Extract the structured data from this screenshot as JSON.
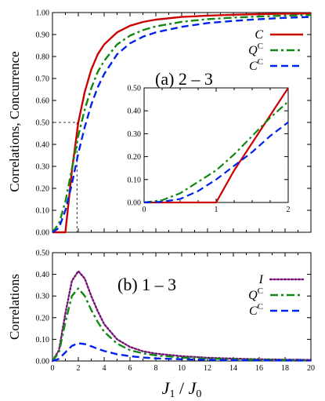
{
  "chart_data": [
    {
      "type": "line",
      "panel_label": "(a) 2 – 3",
      "ylabel": "Correlations, Concurrence",
      "xlim": [
        0,
        20
      ],
      "ylim": [
        0,
        1.0
      ],
      "yticks": [
        "0.00",
        "0.10",
        "0.20",
        "0.30",
        "0.40",
        "0.50",
        "0.60",
        "0.70",
        "0.80",
        "0.90",
        "1.00"
      ],
      "xticks": [],
      "reference": {
        "y": 0.5,
        "x": 1.9
      },
      "legend_placement": "upper-right",
      "series": [
        {
          "name": "C",
          "name_sup": "",
          "color": "#cc0000",
          "dash": "solid",
          "x": [
            0,
            1,
            1.5,
            2,
            2.5,
            3,
            3.5,
            4,
            5,
            6,
            7,
            8,
            10,
            12,
            14,
            16,
            18,
            20
          ],
          "y": [
            0,
            0,
            0.28,
            0.5,
            0.64,
            0.74,
            0.81,
            0.855,
            0.91,
            0.94,
            0.957,
            0.968,
            0.98,
            0.986,
            0.99,
            0.993,
            0.995,
            0.996
          ]
        },
        {
          "name": "Q",
          "name_sup": "C",
          "color": "#118811",
          "dash": "dashdot",
          "x": [
            0,
            0.5,
            1,
            1.5,
            2,
            2.5,
            3,
            3.5,
            4,
            5,
            6,
            7,
            8,
            10,
            12,
            14,
            16,
            18,
            20
          ],
          "y": [
            0,
            0.04,
            0.14,
            0.29,
            0.44,
            0.56,
            0.655,
            0.73,
            0.78,
            0.855,
            0.895,
            0.92,
            0.937,
            0.958,
            0.97,
            0.977,
            0.982,
            0.986,
            0.989
          ]
        },
        {
          "name": "C",
          "name_sup": "C",
          "color": "#0022ee",
          "dash": "dashed",
          "x": [
            0,
            0.5,
            1,
            1.5,
            2,
            2.5,
            3,
            3.5,
            4,
            5,
            6,
            7,
            8,
            10,
            12,
            14,
            16,
            18,
            20
          ],
          "y": [
            0,
            0.02,
            0.1,
            0.22,
            0.36,
            0.48,
            0.58,
            0.66,
            0.72,
            0.81,
            0.86,
            0.89,
            0.91,
            0.935,
            0.952,
            0.962,
            0.97,
            0.976,
            0.98
          ]
        }
      ],
      "inset": {
        "xlim": [
          0,
          2
        ],
        "ylim": [
          0,
          0.5
        ],
        "xticks": [
          "0",
          "1",
          "2"
        ],
        "yticks": [
          "0.00",
          "0.10",
          "0.20",
          "0.30",
          "0.40",
          "0.50"
        ],
        "series": [
          {
            "color": "#cc0000",
            "dash": "solid",
            "x": [
              0,
              0.25,
              0.5,
              0.75,
              1,
              1.25,
              1.5,
              1.75,
              2
            ],
            "y": [
              0,
              0,
              0,
              0,
              0,
              0.14,
              0.26,
              0.38,
              0.5
            ]
          },
          {
            "color": "#118811",
            "dash": "dashdot",
            "x": [
              0,
              0.25,
              0.5,
              0.75,
              1,
              1.25,
              1.5,
              1.75,
              2
            ],
            "y": [
              0,
              0.01,
              0.04,
              0.09,
              0.14,
              0.21,
              0.29,
              0.37,
              0.44
            ]
          },
          {
            "color": "#0022ee",
            "dash": "dashed",
            "x": [
              0,
              0.25,
              0.5,
              0.75,
              1,
              1.25,
              1.5,
              1.75,
              2
            ],
            "y": [
              0,
              0.003,
              0.015,
              0.05,
              0.1,
              0.16,
              0.22,
              0.29,
              0.35
            ]
          }
        ]
      }
    },
    {
      "type": "line",
      "panel_label": "(b) 1 – 3",
      "ylabel": "Correlations",
      "xlabel_main": "J",
      "xlabel_sub1": "1",
      "xlabel_sep": " / ",
      "xlabel_main2": "J",
      "xlabel_sub2": "0",
      "xlim": [
        0,
        20
      ],
      "ylim": [
        0,
        0.5
      ],
      "yticks": [
        "0.00",
        "0.10",
        "0.20",
        "0.30",
        "0.40",
        "0.50"
      ],
      "xticks": [
        "0",
        "2",
        "4",
        "6",
        "8",
        "10",
        "12",
        "14",
        "16",
        "18",
        "20"
      ],
      "legend_placement": "upper-right",
      "series": [
        {
          "name": "I",
          "name_sup": "",
          "color": "#771177",
          "dash": "dotted",
          "x": [
            0,
            0.5,
            1,
            1.5,
            2,
            2.5,
            3,
            3.5,
            4,
            5,
            6,
            7,
            8,
            10,
            12,
            14,
            16,
            18,
            20
          ],
          "y": [
            0,
            0.05,
            0.22,
            0.37,
            0.415,
            0.38,
            0.3,
            0.23,
            0.17,
            0.1,
            0.065,
            0.045,
            0.034,
            0.022,
            0.015,
            0.011,
            0.008,
            0.006,
            0.005
          ]
        },
        {
          "name": "Q",
          "name_sup": "C",
          "color": "#118811",
          "dash": "dashdot",
          "x": [
            0,
            0.5,
            1,
            1.5,
            2,
            2.5,
            3,
            3.5,
            4,
            5,
            6,
            7,
            8,
            10,
            12,
            14,
            16,
            18,
            20
          ],
          "y": [
            0,
            0.04,
            0.18,
            0.3,
            0.335,
            0.3,
            0.235,
            0.18,
            0.135,
            0.08,
            0.05,
            0.035,
            0.026,
            0.016,
            0.011,
            0.008,
            0.006,
            0.004,
            0.003
          ]
        },
        {
          "name": "C",
          "name_sup": "C",
          "color": "#0022ee",
          "dash": "dashed",
          "x": [
            0,
            0.5,
            1,
            1.5,
            2,
            2.5,
            3,
            3.5,
            4,
            5,
            6,
            7,
            8,
            10,
            12,
            14,
            16,
            18,
            20
          ],
          "y": [
            0,
            0.01,
            0.04,
            0.07,
            0.082,
            0.078,
            0.068,
            0.056,
            0.046,
            0.031,
            0.022,
            0.016,
            0.012,
            0.008,
            0.005,
            0.004,
            0.003,
            0.002,
            0.002
          ]
        }
      ]
    }
  ]
}
